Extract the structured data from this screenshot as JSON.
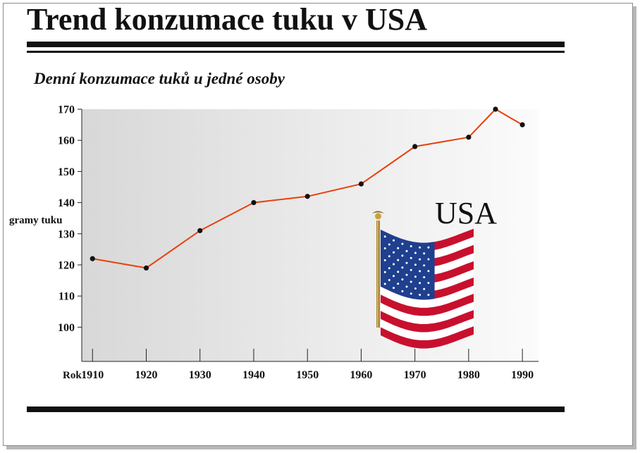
{
  "title": "Trend konzumace tuku v USA",
  "subtitle": "Denní konzumace tuků u jedné osoby",
  "annotation": "USA",
  "colors": {
    "line": "#e8400c",
    "marker": "#111111",
    "rule": "#111111"
  },
  "flag_icon": "us-flag-icon",
  "chart_data": {
    "type": "line",
    "title": "Denní konzumace tuků u jedné osoby",
    "xlabel": "Rok",
    "ylabel": "gramy tuku",
    "x_ticks": [
      "1910",
      "1920",
      "1930",
      "1940",
      "1950",
      "1960",
      "1970",
      "1980",
      "1990"
    ],
    "y_ticks": [
      "100",
      "110",
      "120",
      "130",
      "140",
      "150",
      "160",
      "170"
    ],
    "xlim": [
      1908,
      1993
    ],
    "ylim": [
      89,
      170
    ],
    "grid": false,
    "legend": "none",
    "series": [
      {
        "x": [
          1910,
          1920,
          1930,
          1940,
          1950,
          1960,
          1970,
          1980,
          1985,
          1990
        ],
        "y": [
          122,
          119,
          131,
          140,
          142,
          146,
          158,
          161,
          170,
          165
        ]
      }
    ]
  }
}
